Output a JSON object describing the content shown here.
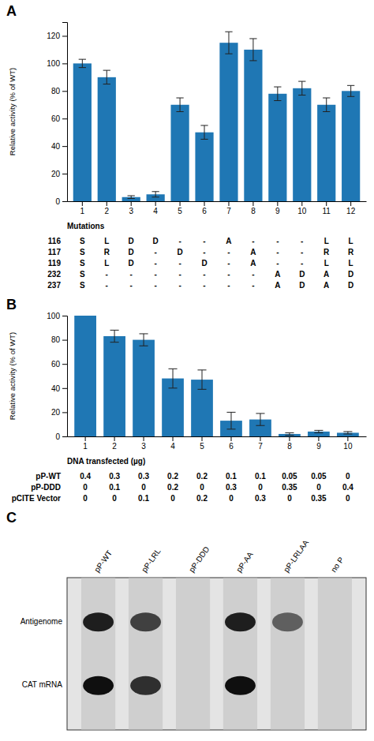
{
  "chart_data": [
    {
      "type": "bar",
      "title": "A",
      "categories": [
        "1",
        "2",
        "3",
        "4",
        "5",
        "6",
        "7",
        "8",
        "9",
        "10",
        "11",
        "12"
      ],
      "values": [
        100,
        90,
        3,
        5,
        70,
        50,
        115,
        110,
        78,
        82,
        70,
        80
      ],
      "errors": [
        3,
        5,
        1,
        2,
        5,
        5,
        8,
        8,
        5,
        5,
        5,
        4
      ],
      "xlabel": "Mutations",
      "ylabel": "Relative activity (% of WT)",
      "ylim": [
        0,
        130
      ],
      "yticks": [
        0,
        20,
        40,
        60,
        80,
        100,
        120
      ],
      "grid": false,
      "table": {
        "rows": [
          "116",
          "117",
          "119",
          "232",
          "237"
        ],
        "cells": [
          [
            "S",
            "L",
            "D",
            "D",
            "-",
            "-",
            "A",
            "-",
            "-",
            "-",
            "L",
            "L"
          ],
          [
            "S",
            "R",
            "D",
            "-",
            "D",
            "-",
            "-",
            "A",
            "-",
            "-",
            "R",
            "R"
          ],
          [
            "S",
            "L",
            "D",
            "-",
            "-",
            "D",
            "-",
            "A",
            "-",
            "-",
            "L",
            "L"
          ],
          [
            "S",
            "-",
            "-",
            "-",
            "-",
            "-",
            "-",
            "-",
            "A",
            "D",
            "A",
            "D"
          ],
          [
            "S",
            "-",
            "-",
            "-",
            "-",
            "-",
            "-",
            "-",
            "A",
            "D",
            "A",
            "D"
          ]
        ]
      }
    },
    {
      "type": "bar",
      "title": "B",
      "categories": [
        "1",
        "2",
        "3",
        "4",
        "5",
        "6",
        "7",
        "8",
        "9",
        "10"
      ],
      "values": [
        100,
        83,
        80,
        48,
        47,
        13,
        14,
        2,
        4,
        3
      ],
      "errors": [
        0,
        5,
        5,
        8,
        8,
        7,
        5,
        1,
        1,
        1
      ],
      "xlabel": "DNA transfected (µg)",
      "ylabel": "Relative activity (% of WT)",
      "ylim": [
        0,
        100
      ],
      "yticks": [
        0,
        20,
        40,
        60,
        80,
        100
      ],
      "grid": false,
      "table": {
        "rows": [
          "pP-WT",
          "pP-DDD",
          "pCITE Vector"
        ],
        "cells": [
          [
            "0.4",
            "0.3",
            "0.3",
            "0.2",
            "0.2",
            "0.1",
            "0.1",
            "0.05",
            "0.05",
            "0"
          ],
          [
            "0",
            "0.1",
            "0",
            "0.2",
            "0",
            "0.3",
            "0",
            "0.35",
            "0",
            "0.4"
          ],
          [
            "0",
            "0",
            "0.1",
            "0",
            "0.2",
            "0",
            "0.3",
            "0",
            "0.35",
            "0"
          ]
        ]
      }
    },
    {
      "type": "gel",
      "title": "C",
      "categories": [
        "pP-WT",
        "pP-LRL",
        "pP-DDD",
        "pP-AA",
        "pP-LRLAA",
        "no P"
      ],
      "series": [
        {
          "name": "Antigenome",
          "values": [
            0.9,
            0.8,
            0.0,
            0.9,
            0.7,
            0.0
          ]
        },
        {
          "name": "CAT mRNA",
          "values": [
            0.95,
            0.85,
            0.0,
            0.95,
            0.0,
            0.0
          ]
        }
      ]
    }
  ]
}
